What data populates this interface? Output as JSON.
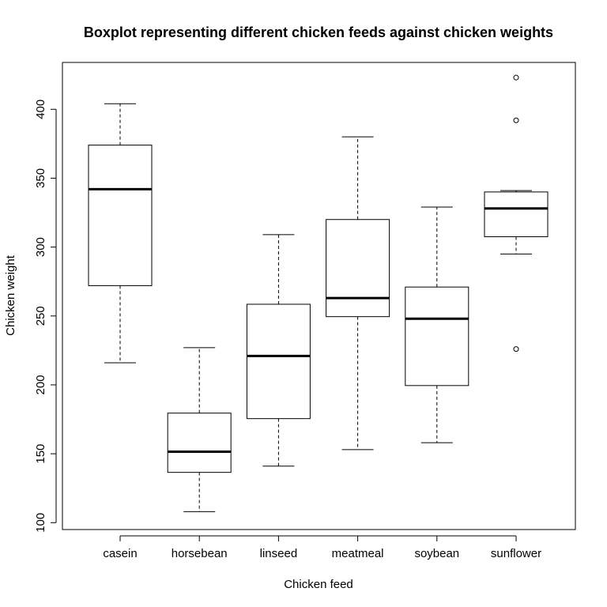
{
  "chart_data": {
    "type": "boxplot",
    "title": "Boxplot representing different chicken feeds against chicken weights",
    "xlabel": "Chicken feed",
    "ylabel": "Chicken weight",
    "categories": [
      "casein",
      "horsebean",
      "linseed",
      "meatmeal",
      "soybean",
      "sunflower"
    ],
    "ylim": [
      95,
      434
    ],
    "yticks": [
      100,
      150,
      200,
      250,
      300,
      350,
      400
    ],
    "grid": false,
    "boxes": [
      {
        "name": "casein",
        "whisker_low": 216,
        "q1": 272,
        "median": 342,
        "q3": 374,
        "whisker_high": 404,
        "outliers": []
      },
      {
        "name": "horsebean",
        "whisker_low": 108,
        "q1": 136.5,
        "median": 151.5,
        "q3": 179.5,
        "whisker_high": 227,
        "outliers": []
      },
      {
        "name": "linseed",
        "whisker_low": 141,
        "q1": 175.5,
        "median": 221,
        "q3": 258.5,
        "whisker_high": 309,
        "outliers": []
      },
      {
        "name": "meatmeal",
        "whisker_low": 153,
        "q1": 249.5,
        "median": 263,
        "q3": 320,
        "whisker_high": 380,
        "outliers": []
      },
      {
        "name": "soybean",
        "whisker_low": 158,
        "q1": 199.5,
        "median": 248,
        "q3": 271,
        "whisker_high": 329,
        "outliers": []
      },
      {
        "name": "sunflower",
        "whisker_low": 295,
        "q1": 307.5,
        "median": 328,
        "q3": 340,
        "whisker_high": 341,
        "outliers": [
          226,
          392,
          423
        ]
      }
    ]
  }
}
